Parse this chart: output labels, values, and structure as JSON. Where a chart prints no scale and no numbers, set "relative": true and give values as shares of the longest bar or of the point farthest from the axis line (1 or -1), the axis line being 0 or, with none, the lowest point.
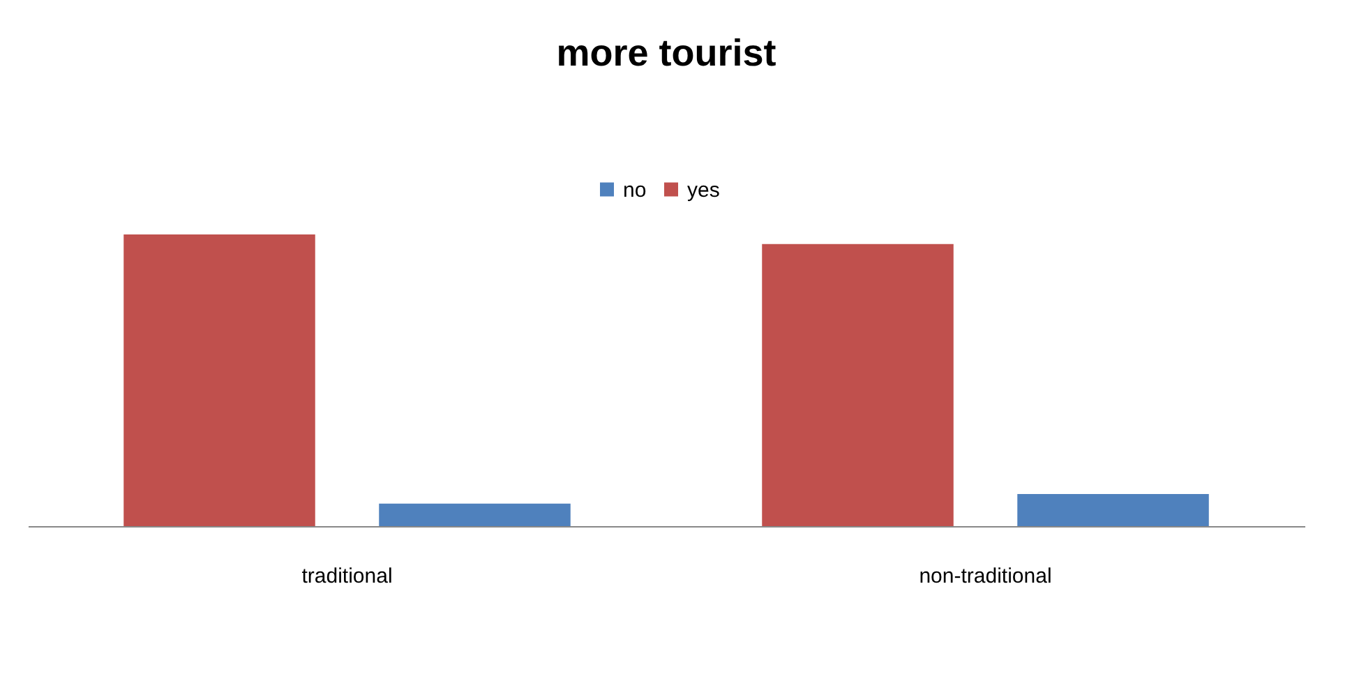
{
  "chart_data": {
    "type": "bar",
    "title": "more tourist",
    "categories": [
      "traditional",
      "non-traditional"
    ],
    "series": [
      {
        "name": "yes",
        "color": "#c0504d",
        "values": [
          1,
          0.967
        ]
      },
      {
        "name": "no",
        "color": "#4f81bd",
        "values": [
          0.077,
          0.11
        ]
      }
    ],
    "relative": true,
    "legend": "top"
  }
}
